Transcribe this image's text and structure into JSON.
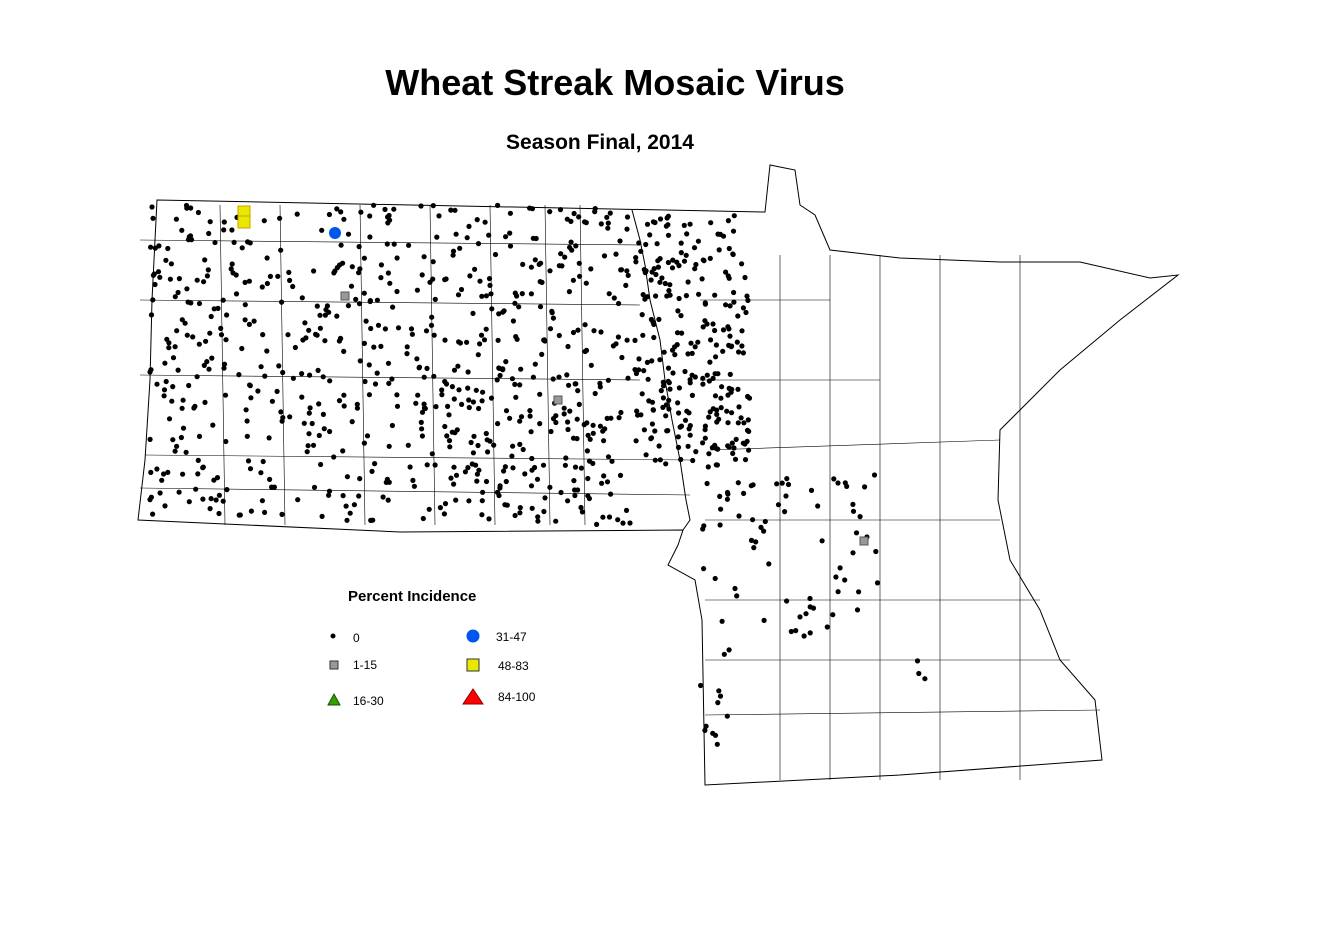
{
  "title": "Wheat Streak Mosaic Virus",
  "subtitle": "Season Final, 2014",
  "legend": {
    "title": "Percent Incidence",
    "items": [
      {
        "label": "0",
        "symbol": "dot",
        "color": "#000000"
      },
      {
        "label": "1-15",
        "symbol": "square",
        "color": "#999999"
      },
      {
        "label": "16-30",
        "symbol": "triangle",
        "color": "#33a000"
      },
      {
        "label": "31-47",
        "symbol": "circle",
        "color": "#0055ee"
      },
      {
        "label": "48-83",
        "symbol": "square",
        "color": "#e8e800"
      },
      {
        "label": "84-100",
        "symbol": "triangle",
        "color": "#ff0000"
      }
    ]
  }
}
